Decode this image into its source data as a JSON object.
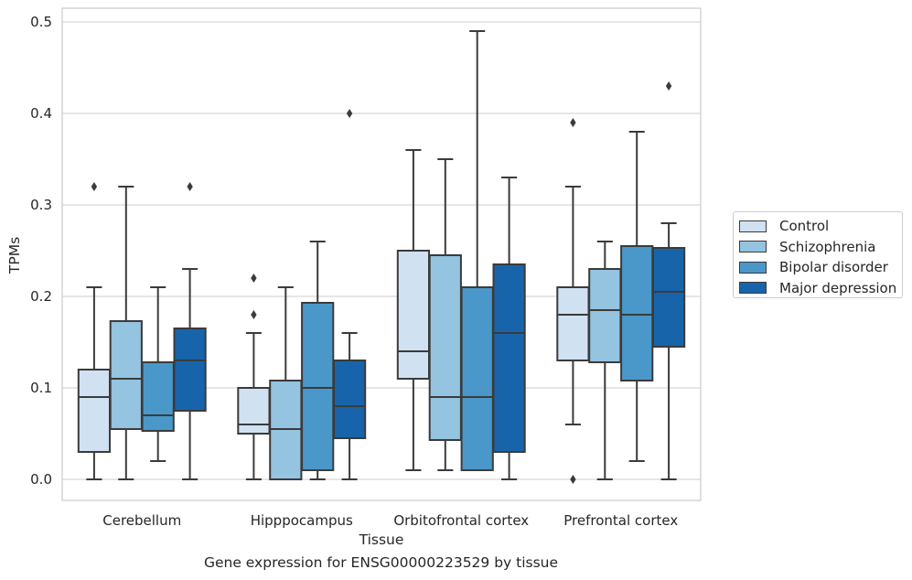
{
  "caption": "Gene expression for ENSG00000223529 by tissue",
  "chart_data": {
    "type": "box",
    "title": "",
    "xlabel": "Tissue",
    "ylabel": "TPMs",
    "ylim": [
      -0.023,
      0.515
    ],
    "yticks": [
      0.0,
      0.1,
      0.2,
      0.3,
      0.4,
      0.5
    ],
    "ytick_labels": [
      "0.0",
      "0.1",
      "0.2",
      "0.3",
      "0.4",
      "0.5"
    ],
    "grid": "horizontal",
    "legend_position": "right",
    "categories": [
      "Cerebellum",
      "Hipppocampus",
      "Orbitofrontal cortex",
      "Prefrontal cortex"
    ],
    "series": [
      {
        "name": "Control",
        "color": "#d0e1f2",
        "boxes": [
          {
            "whislo": 0.0,
            "q1": 0.03,
            "med": 0.09,
            "q3": 0.12,
            "whishi": 0.21,
            "fliers": [
              0.32
            ]
          },
          {
            "whislo": 0.0,
            "q1": 0.05,
            "med": 0.06,
            "q3": 0.1,
            "whishi": 0.16,
            "fliers": [
              0.18,
              0.22
            ]
          },
          {
            "whislo": 0.01,
            "q1": 0.11,
            "med": 0.14,
            "q3": 0.25,
            "whishi": 0.36,
            "fliers": []
          },
          {
            "whislo": 0.06,
            "q1": 0.13,
            "med": 0.18,
            "q3": 0.21,
            "whishi": 0.32,
            "fliers": [
              0.0,
              0.39
            ]
          }
        ]
      },
      {
        "name": "Schizophrenia",
        "color": "#94c4df",
        "boxes": [
          {
            "whislo": 0.0,
            "q1": 0.055,
            "med": 0.11,
            "q3": 0.173,
            "whishi": 0.32,
            "fliers": []
          },
          {
            "whislo": 0.0,
            "q1": 0.0,
            "med": 0.055,
            "q3": 0.108,
            "whishi": 0.21,
            "fliers": []
          },
          {
            "whislo": 0.01,
            "q1": 0.043,
            "med": 0.09,
            "q3": 0.245,
            "whishi": 0.35,
            "fliers": []
          },
          {
            "whislo": 0.0,
            "q1": 0.128,
            "med": 0.185,
            "q3": 0.23,
            "whishi": 0.26,
            "fliers": []
          }
        ]
      },
      {
        "name": "Bipolar disorder",
        "color": "#4a98c9",
        "boxes": [
          {
            "whislo": 0.02,
            "q1": 0.053,
            "med": 0.07,
            "q3": 0.128,
            "whishi": 0.21,
            "fliers": []
          },
          {
            "whislo": 0.0,
            "q1": 0.01,
            "med": 0.1,
            "q3": 0.193,
            "whishi": 0.26,
            "fliers": []
          },
          {
            "whislo": 0.01,
            "q1": 0.01,
            "med": 0.09,
            "q3": 0.21,
            "whishi": 0.49,
            "fliers": []
          },
          {
            "whislo": 0.02,
            "q1": 0.108,
            "med": 0.18,
            "q3": 0.255,
            "whishi": 0.38,
            "fliers": []
          }
        ]
      },
      {
        "name": "Major depression",
        "color": "#1764ab",
        "boxes": [
          {
            "whislo": 0.0,
            "q1": 0.075,
            "med": 0.13,
            "q3": 0.165,
            "whishi": 0.23,
            "fliers": [
              0.32
            ]
          },
          {
            "whislo": 0.0,
            "q1": 0.045,
            "med": 0.08,
            "q3": 0.13,
            "whishi": 0.16,
            "fliers": [
              0.4
            ]
          },
          {
            "whislo": 0.0,
            "q1": 0.03,
            "med": 0.16,
            "q3": 0.235,
            "whishi": 0.33,
            "fliers": []
          },
          {
            "whislo": 0.0,
            "q1": 0.145,
            "med": 0.205,
            "q3": 0.253,
            "whishi": 0.28,
            "fliers": [
              0.43
            ]
          }
        ]
      }
    ]
  }
}
